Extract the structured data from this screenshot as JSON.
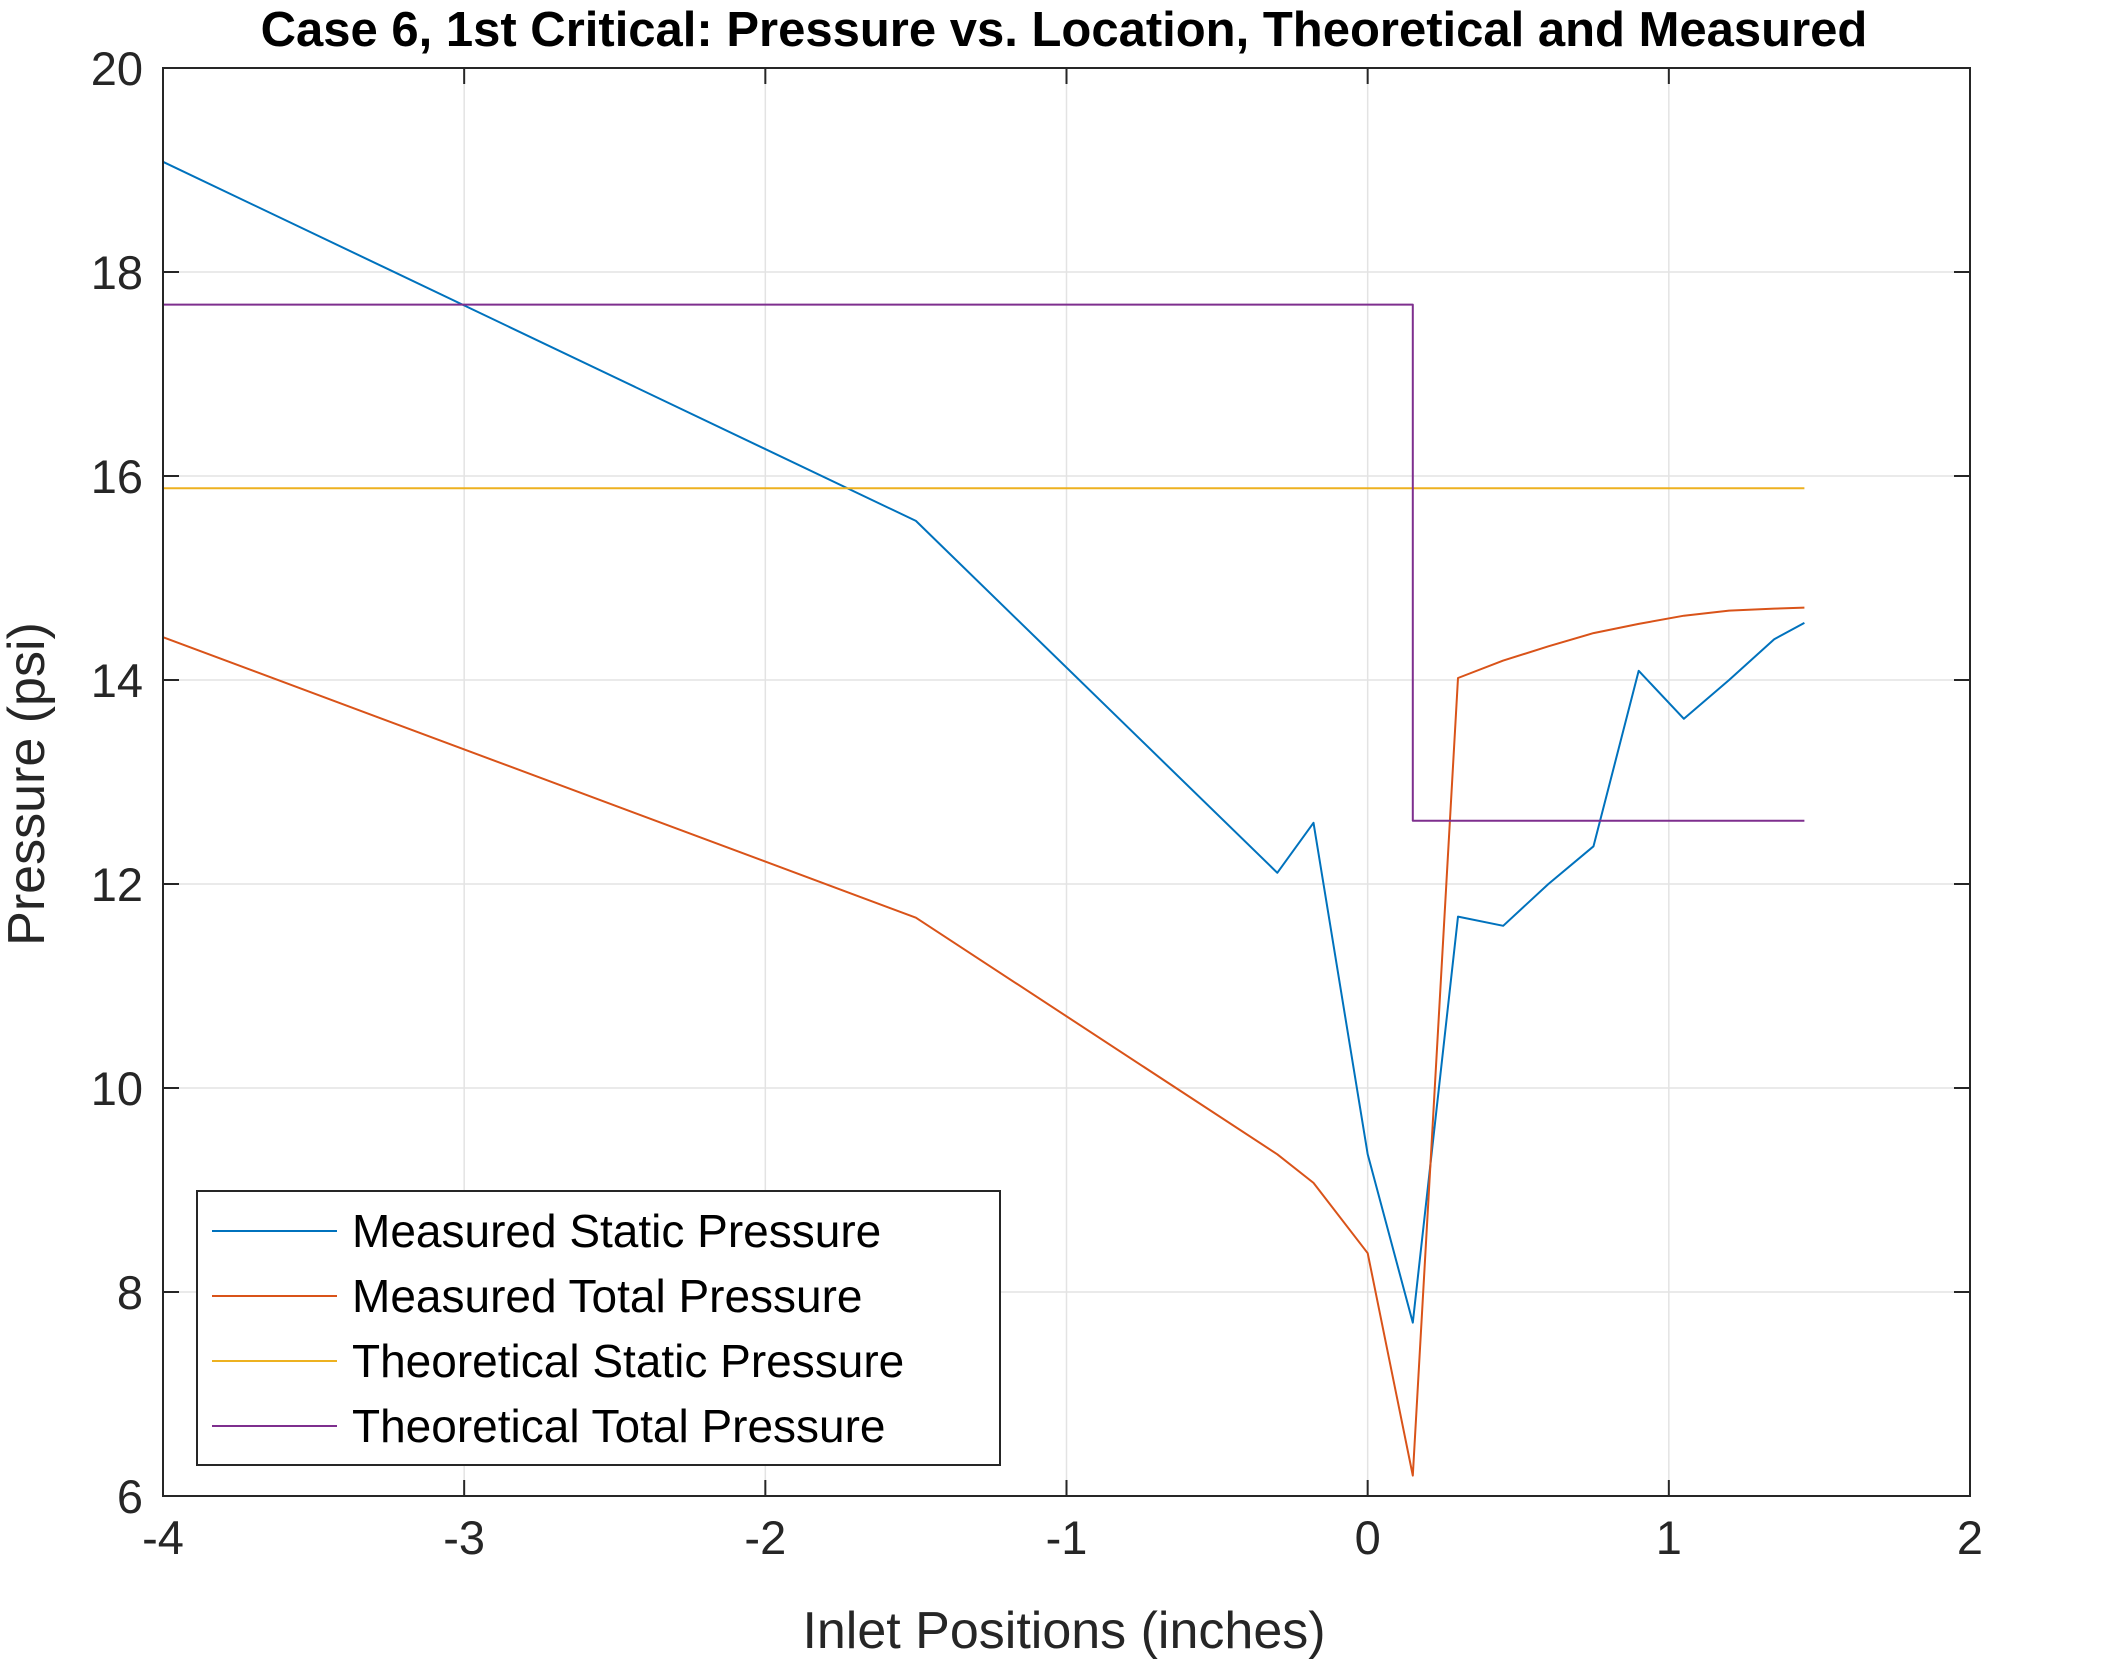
{
  "chart_data": {
    "type": "line",
    "title": "Case 6, 1st Critical: Pressure vs. Location,  Theoretical and Measured",
    "xlabel": "Inlet Positions (inches)",
    "ylabel": "Pressure (psi)",
    "xlim": [
      -4,
      2
    ],
    "ylim": [
      6,
      20
    ],
    "xticks": [
      -4,
      -3,
      -2,
      -1,
      0,
      1,
      2
    ],
    "yticks": [
      6,
      8,
      10,
      12,
      14,
      16,
      18,
      20
    ],
    "xtick_labels": [
      "-4",
      "-3",
      "-2",
      "-1",
      "0",
      "1",
      "2"
    ],
    "ytick_labels": [
      "6",
      "8",
      "10",
      "12",
      "14",
      "16",
      "18",
      "20"
    ],
    "grid": true,
    "legend_position": "bottom-left",
    "series": [
      {
        "name": "Measured Static Pressure",
        "color": "#0072BD",
        "x": [
          -4,
          -1.5,
          -0.3,
          -0.18,
          0,
          0.15,
          0.3,
          0.45,
          0.6,
          0.75,
          0.9,
          1.05,
          1.2,
          1.35,
          1.45
        ],
        "y": [
          19.08,
          15.56,
          12.11,
          12.6,
          9.35,
          7.7,
          11.68,
          11.59,
          12.0,
          12.37,
          14.09,
          13.62,
          14.0,
          14.4,
          14.56
        ]
      },
      {
        "name": "Measured Total Pressure",
        "color": "#D95319",
        "x": [
          -4,
          -1.5,
          -0.3,
          -0.18,
          0,
          0.15,
          0.3,
          0.45,
          0.6,
          0.75,
          0.9,
          1.05,
          1.2,
          1.35,
          1.45
        ],
        "y": [
          14.42,
          11.67,
          9.35,
          9.07,
          8.38,
          6.2,
          14.02,
          14.19,
          14.33,
          14.46,
          14.55,
          14.63,
          14.68,
          14.7,
          14.71
        ]
      },
      {
        "name": "Theoretical Static Pressure",
        "color": "#EDB120",
        "x": [
          -4,
          1.45
        ],
        "y": [
          15.88,
          15.88
        ]
      },
      {
        "name": "Theoretical Total Pressure",
        "color": "#7E2F8E",
        "x": [
          -4,
          0.15,
          0.15,
          1.45
        ],
        "y": [
          17.68,
          17.68,
          12.62,
          12.62
        ]
      }
    ]
  }
}
